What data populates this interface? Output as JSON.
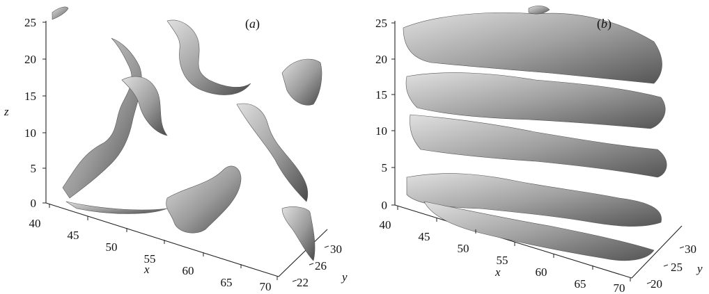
{
  "figure": {
    "panels": [
      {
        "id": "a",
        "label": "(a)",
        "x_axis": {
          "label": "x",
          "ticks": [
            "40",
            "45",
            "50",
            "55",
            "60",
            "65",
            "70"
          ]
        },
        "y_axis": {
          "label": "y",
          "ticks": [
            "22",
            "26",
            "30"
          ]
        },
        "z_axis": {
          "label": "z",
          "ticks": [
            "0",
            "5",
            "10",
            "15",
            "20",
            "25"
          ]
        }
      },
      {
        "id": "b",
        "label": "(b)",
        "x_axis": {
          "label": "x",
          "ticks": [
            "40",
            "45",
            "50",
            "55",
            "60",
            "65",
            "70"
          ]
        },
        "y_axis": {
          "label": "y",
          "ticks": [
            "20",
            "25",
            "30"
          ]
        },
        "z_axis": {
          "label": "",
          "ticks": [
            "0",
            "5",
            "10",
            "15",
            "20",
            "25"
          ]
        }
      }
    ],
    "colors": {
      "surface_light": "#d2d2d2",
      "surface_mid": "#9a9a9a",
      "surface_dark": "#4a4a4a",
      "axis": "#222222"
    }
  }
}
